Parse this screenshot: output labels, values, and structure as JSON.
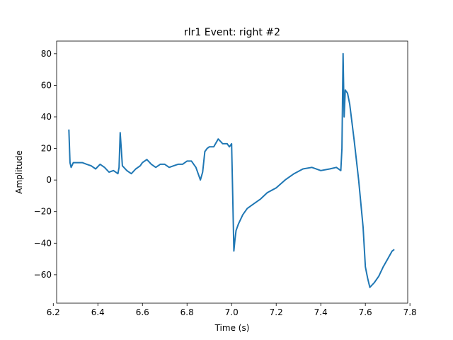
{
  "chart_data": {
    "type": "line",
    "title": "rlr1 Event: right #2",
    "xlabel": "Time (s)",
    "ylabel": "Amplitude",
    "xlim": [
      6.215,
      7.79
    ],
    "ylim": [
      -78,
      88
    ],
    "xticks": [
      6.2,
      6.4,
      6.6,
      6.8,
      7.0,
      7.2,
      7.4,
      7.6,
      7.8
    ],
    "xtick_labels": [
      "6.2",
      "6.4",
      "6.6",
      "6.8",
      "7.0",
      "7.2",
      "7.4",
      "7.6",
      "7.8"
    ],
    "yticks": [
      -60,
      -40,
      -20,
      0,
      20,
      40,
      60,
      80
    ],
    "ytick_labels": [
      "−60",
      "−40",
      "−20",
      "0",
      "20",
      "40",
      "60",
      "80"
    ],
    "grid": false,
    "series": [
      {
        "color": "#1f77b4",
        "x": [
          6.27,
          6.275,
          6.28,
          6.29,
          6.31,
          6.33,
          6.35,
          6.37,
          6.39,
          6.41,
          6.43,
          6.45,
          6.47,
          6.49,
          6.495,
          6.5,
          6.505,
          6.51,
          6.53,
          6.55,
          6.57,
          6.59,
          6.6,
          6.62,
          6.64,
          6.66,
          6.68,
          6.7,
          6.72,
          6.74,
          6.76,
          6.78,
          6.8,
          6.82,
          6.84,
          6.86,
          6.87,
          6.88,
          6.89,
          6.9,
          6.92,
          6.94,
          6.96,
          6.98,
          6.99,
          7.0,
          7.005,
          7.01,
          7.015,
          7.02,
          7.03,
          7.05,
          7.07,
          7.1,
          7.13,
          7.16,
          7.2,
          7.24,
          7.28,
          7.32,
          7.36,
          7.4,
          7.44,
          7.47,
          7.49,
          7.495,
          7.5,
          7.505,
          7.51,
          7.52,
          7.53,
          7.55,
          7.57,
          7.59,
          7.6,
          7.61,
          7.62,
          7.64,
          7.66,
          7.68,
          7.7,
          7.72,
          7.73
        ],
        "y": [
          32,
          11,
          8,
          11,
          11,
          11,
          10,
          9,
          7,
          10,
          8,
          5,
          6,
          4,
          8,
          30,
          20,
          9,
          6,
          4,
          7,
          9,
          11,
          13,
          10,
          8,
          10,
          10,
          8,
          9,
          10,
          10,
          12,
          12,
          8,
          0,
          5,
          18,
          20,
          21,
          21,
          26,
          23,
          23,
          21,
          23,
          -10,
          -45,
          -38,
          -32,
          -28,
          -22,
          -18,
          -15,
          -12,
          -8,
          -5,
          0,
          4,
          7,
          8,
          6,
          7,
          8,
          6,
          20,
          80,
          40,
          57,
          55,
          48,
          25,
          0,
          -30,
          -55,
          -62,
          -68,
          -65,
          -61,
          -55,
          -50,
          -45,
          -44
        ]
      }
    ]
  }
}
